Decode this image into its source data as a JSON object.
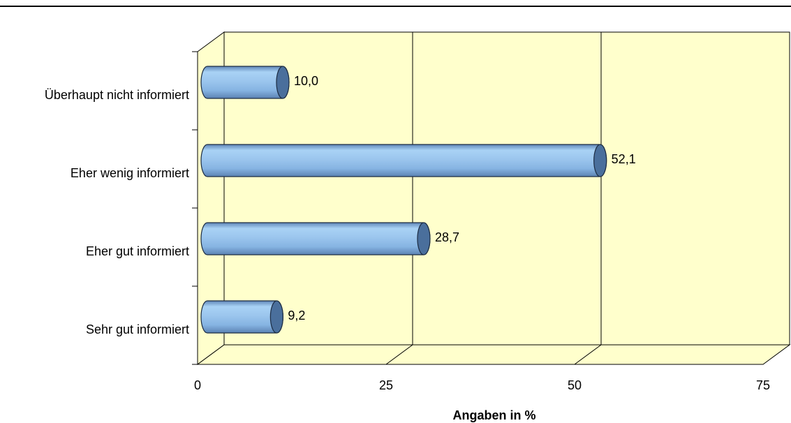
{
  "chart_data": {
    "type": "bar",
    "orientation": "horizontal",
    "style": "3d-cylinder",
    "categories": [
      "Überhaupt nicht informiert",
      "Eher wenig informiert",
      "Eher gut informiert",
      "Sehr gut informiert"
    ],
    "values": [
      10.0,
      52.1,
      28.7,
      9.2
    ],
    "value_labels": [
      "10,0",
      "52,1",
      "28,7",
      "9,2"
    ],
    "xlabel": "Angaben in %",
    "ylabel": "",
    "xlim": [
      0,
      75
    ],
    "xticks": [
      "0",
      "25",
      "50",
      "75"
    ],
    "grid": "vertical",
    "colors": {
      "bar": "#8fbfe8",
      "bar_dark": "#4a6f9c",
      "wall": "#ffffcc",
      "floor": "#ffffcc"
    }
  }
}
